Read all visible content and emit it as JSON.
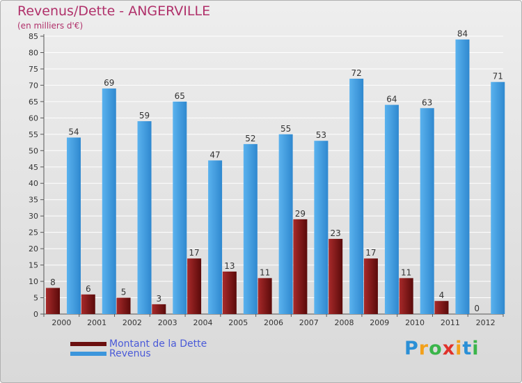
{
  "chart_data": {
    "type": "bar",
    "title": "Revenus/Dette - ANGERVILLE",
    "subtitle": "(en milliers d'€)",
    "categories": [
      "2000",
      "2001",
      "2002",
      "2003",
      "2004",
      "2005",
      "2006",
      "2007",
      "2008",
      "2009",
      "2010",
      "2011",
      "2012"
    ],
    "series": [
      {
        "name": "Montant de la Dette",
        "color": "#8b1a1a",
        "values": [
          8,
          6,
          5,
          3,
          17,
          13,
          11,
          29,
          23,
          17,
          11,
          4,
          0
        ]
      },
      {
        "name": "Revenus",
        "color": "#4aa3e6",
        "values": [
          54,
          69,
          59,
          65,
          47,
          52,
          55,
          53,
          72,
          64,
          63,
          84,
          71
        ]
      }
    ],
    "ylim": [
      0,
      85
    ],
    "yticks": [
      0,
      5,
      10,
      15,
      20,
      25,
      30,
      35,
      40,
      45,
      50,
      55,
      60,
      65,
      70,
      75,
      80,
      85
    ],
    "grid": true,
    "legend_position": "bottom-left"
  },
  "brand": {
    "letters": [
      "P",
      "r",
      "o",
      "x",
      "i",
      "t",
      "i"
    ],
    "colors": [
      "#2a8fd6",
      "#f2a01a",
      "#3ab54a",
      "#e0312a",
      "#f2a01a",
      "#2a8fd6",
      "#3ab54a"
    ]
  }
}
